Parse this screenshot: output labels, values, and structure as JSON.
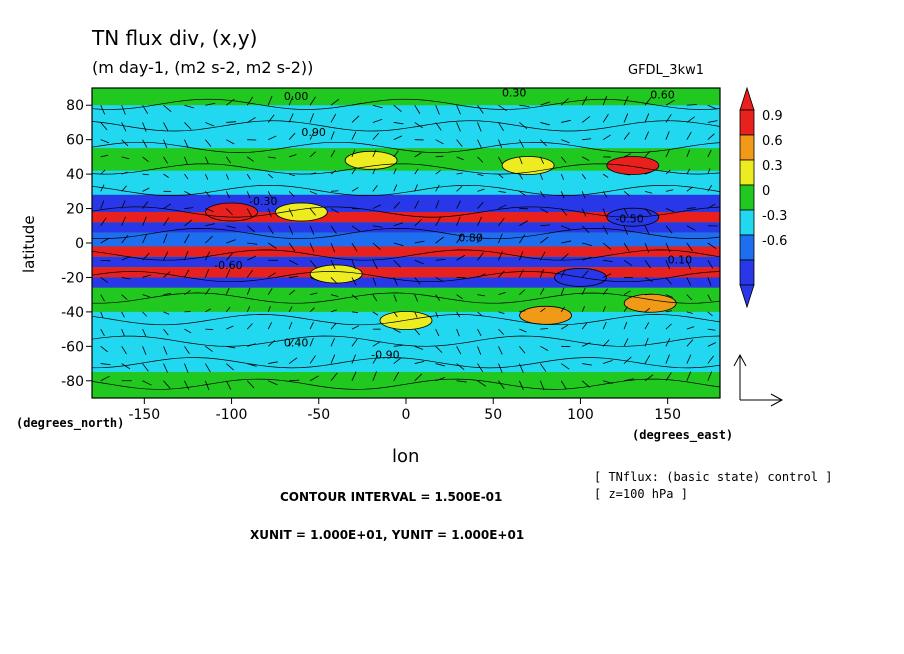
{
  "header": {
    "title": "TN flux div, (x,y)",
    "subtitle": "(m day-1, (m2 s-2, m2 s-2))",
    "model": "GFDL_3kw1"
  },
  "axes": {
    "xlabel": "lon",
    "ylabel": "latitude",
    "x_unit": "(degrees_east)",
    "y_unit": "(degrees_north)"
  },
  "notes": {
    "contour_interval": "CONTOUR INTERVAL = 1.500E-01",
    "units": "XUNIT = 1.000E+01, YUNIT = 1.000E+01",
    "source_line1": "[ TNflux: (basic state) control ]",
    "source_line2": "[ z=100 hPa ]"
  },
  "colorbar": {
    "labels": [
      "0.9",
      "0.6",
      "0.3",
      "0",
      "-0.3",
      "-0.6"
    ],
    "colors": [
      "#e8201e",
      "#f09a18",
      "#ecec20",
      "#20c820",
      "#22d8f0",
      "#1e6ef0",
      "#2838e8"
    ]
  },
  "chart_data": {
    "type": "heatmap",
    "title": "TN flux div, (x,y)",
    "xlabel": "lon",
    "ylabel": "latitude",
    "xlim": [
      -180,
      180
    ],
    "ylim": [
      -90,
      90
    ],
    "xticks": [
      -150,
      -100,
      -50,
      0,
      50,
      100,
      150
    ],
    "yticks": [
      -80,
      -60,
      -40,
      -20,
      0,
      20,
      40,
      60,
      80
    ],
    "levels": [
      -0.6,
      -0.3,
      0,
      0.3,
      0.6,
      0.9
    ],
    "contour_labels": [
      "0.00",
      "0.30",
      "0.60",
      "0.90",
      "-0.30",
      "-0.60",
      "0.80",
      "-0.50",
      "0.10",
      "0.40",
      "-0.90"
    ],
    "bands": [
      {
        "lat": [
          80,
          90
        ],
        "value": 0.1
      },
      {
        "lat": [
          55,
          80
        ],
        "value": -0.2
      },
      {
        "lat": [
          42,
          55
        ],
        "value": 0.15
      },
      {
        "lat": [
          28,
          42
        ],
        "value": -0.1
      },
      {
        "lat": [
          18,
          28
        ],
        "value": -0.7
      },
      {
        "lat": [
          12,
          18
        ],
        "value": 0.95
      },
      {
        "lat": [
          6,
          12
        ],
        "value": -0.7
      },
      {
        "lat": [
          -2,
          6
        ],
        "value": -0.35
      },
      {
        "lat": [
          -8,
          -2
        ],
        "value": 0.95
      },
      {
        "lat": [
          -14,
          -8
        ],
        "value": -0.7
      },
      {
        "lat": [
          -20,
          -14
        ],
        "value": 0.95
      },
      {
        "lat": [
          -26,
          -20
        ],
        "value": -0.7
      },
      {
        "lat": [
          -40,
          -26
        ],
        "value": 0.1
      },
      {
        "lat": [
          -75,
          -40
        ],
        "value": -0.2
      },
      {
        "lat": [
          -90,
          -75
        ],
        "value": 0.1
      }
    ],
    "blobs": [
      {
        "lon": -20,
        "lat": 48,
        "value": 0.45
      },
      {
        "lon": 70,
        "lat": 45,
        "value": 0.5
      },
      {
        "lon": 130,
        "lat": 45,
        "value": 0.95
      },
      {
        "lon": -100,
        "lat": 18,
        "value": 0.95
      },
      {
        "lon": -60,
        "lat": 18,
        "value": 0.5
      },
      {
        "lon": -40,
        "lat": -18,
        "value": 0.45
      },
      {
        "lon": 0,
        "lat": -45,
        "value": 0.5
      },
      {
        "lon": 80,
        "lat": -42,
        "value": 0.6
      },
      {
        "lon": 140,
        "lat": -35,
        "value": 0.6
      },
      {
        "lon": 130,
        "lat": 15,
        "value": -0.7
      },
      {
        "lon": 100,
        "lat": -20,
        "value": -0.7
      }
    ]
  }
}
